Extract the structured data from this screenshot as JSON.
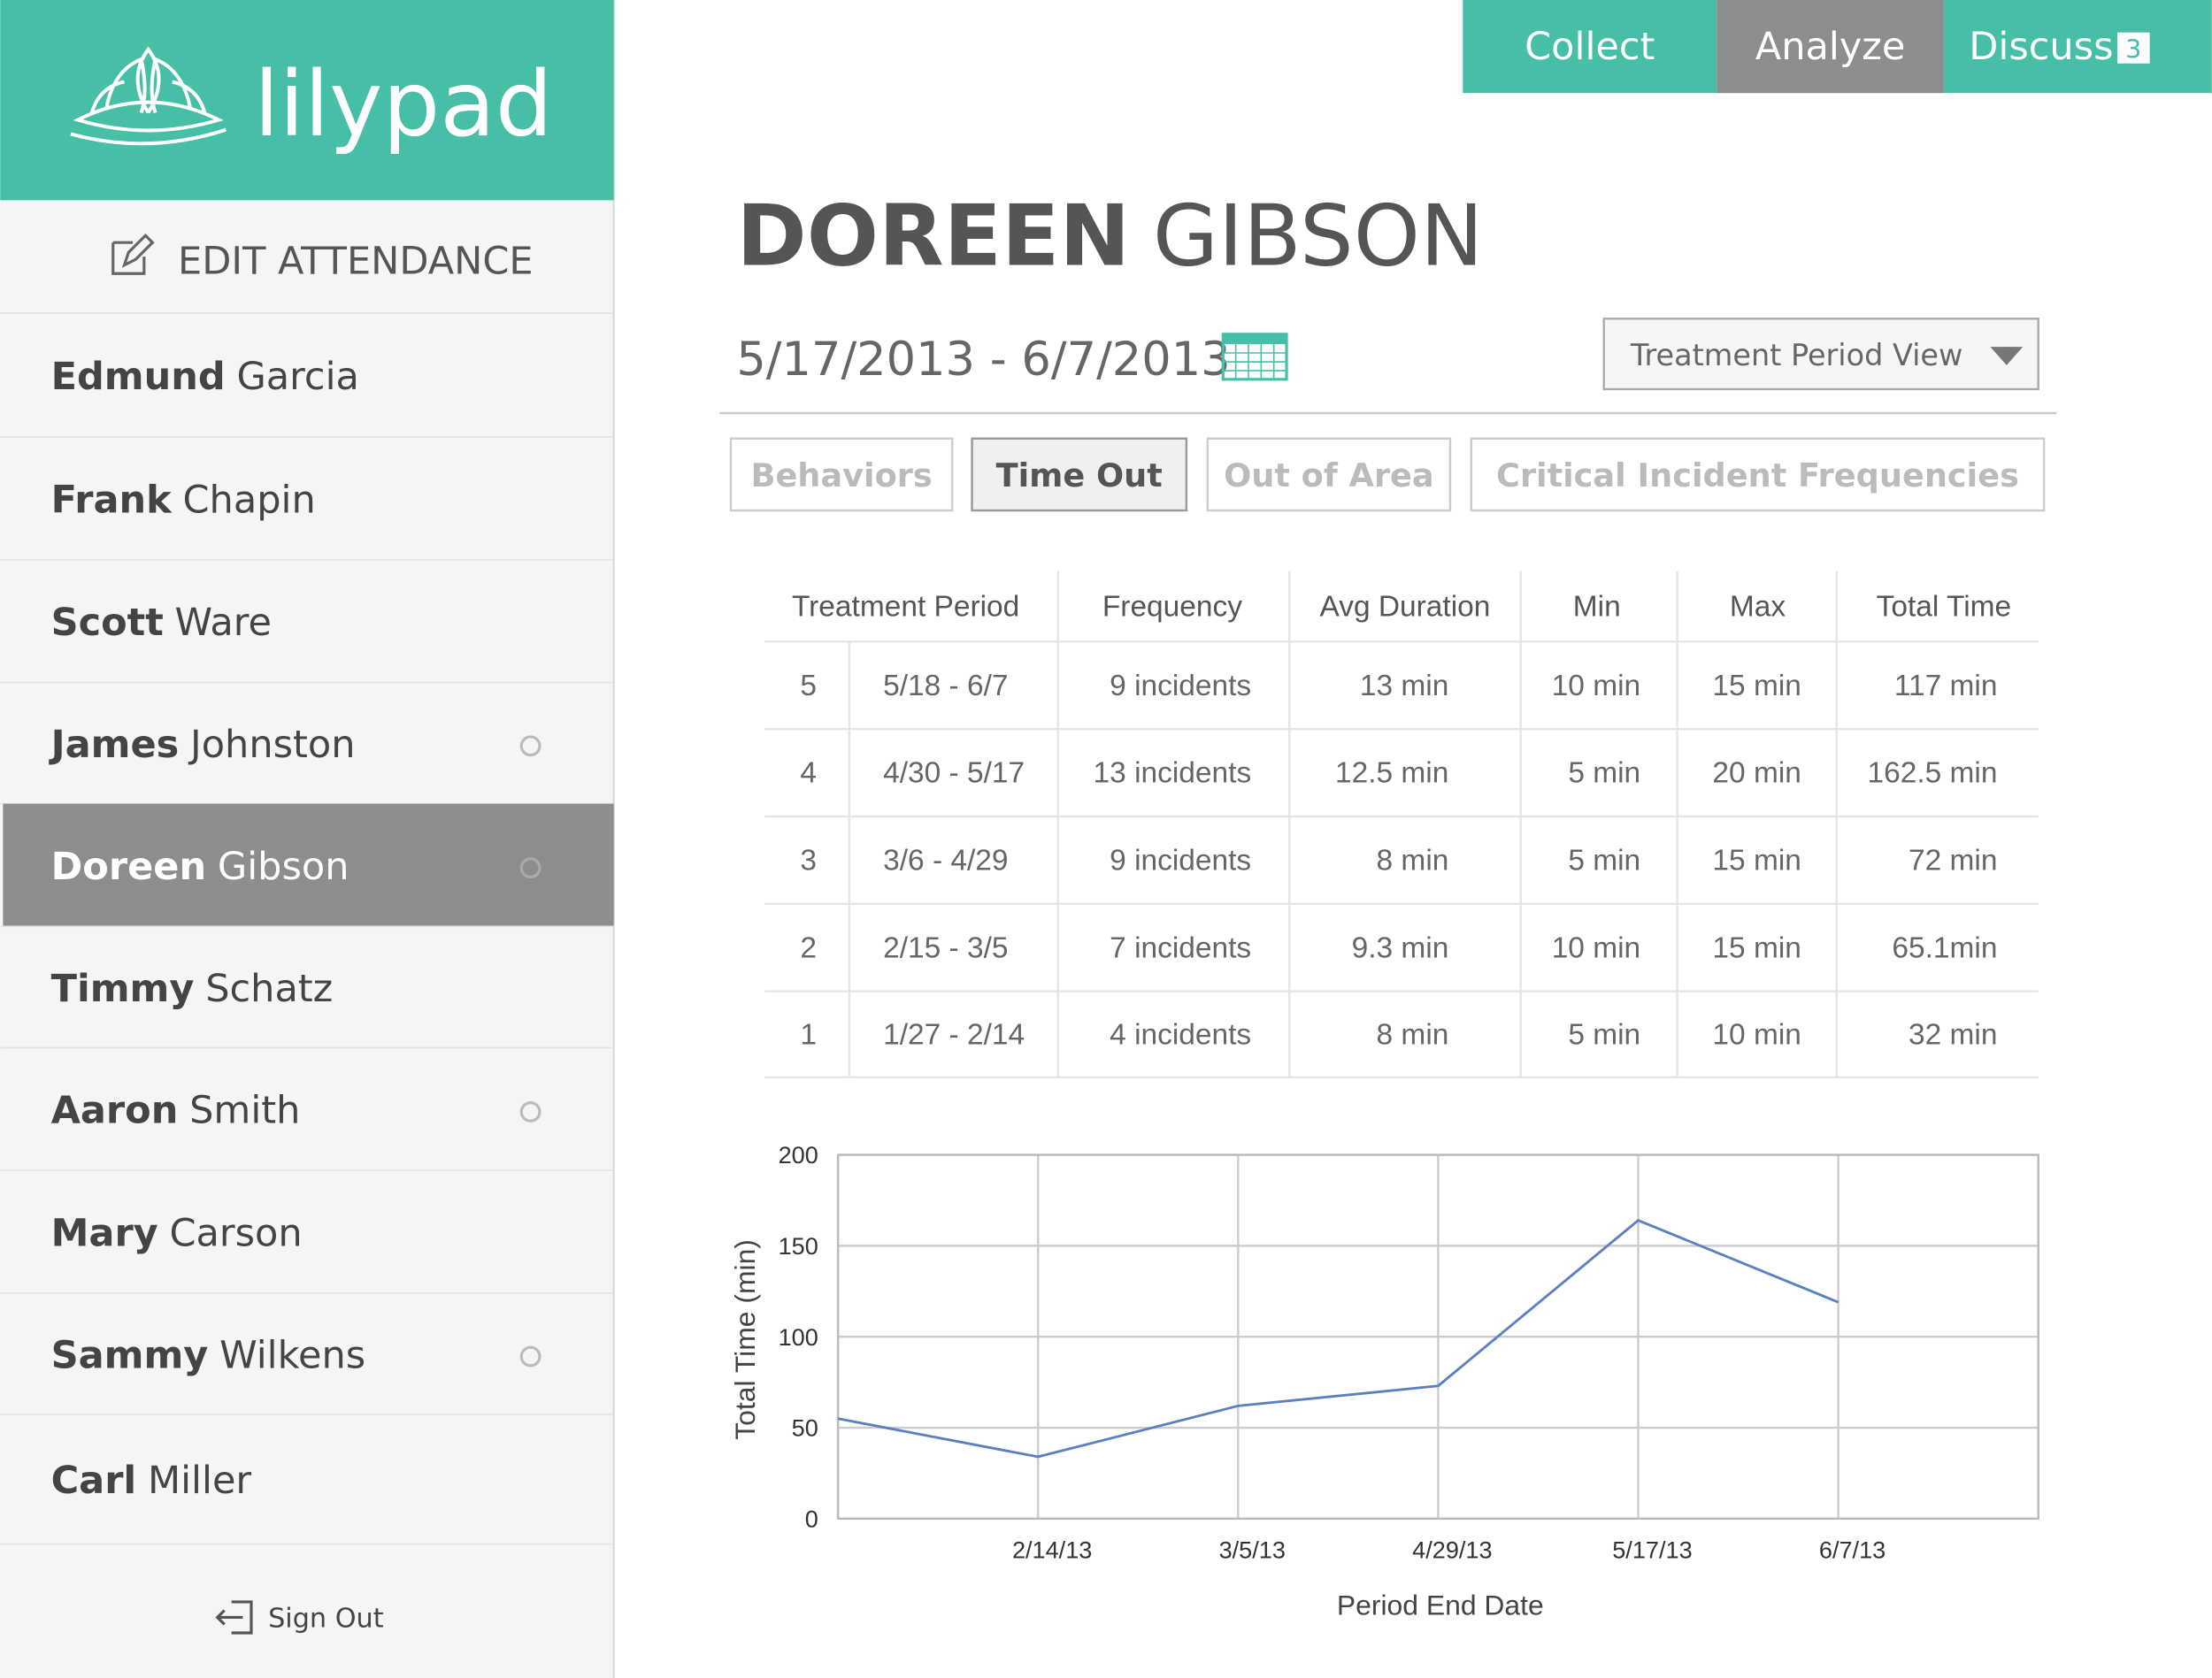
{
  "header": {
    "logo": "lilypad",
    "nav": [
      {
        "label": "Collect"
      },
      {
        "label": "Analyze",
        "active": true
      },
      {
        "label": "Discuss",
        "badge": "3"
      }
    ]
  },
  "sidebar": {
    "edit": "EDIT ATTENDANCE",
    "selected": 4,
    "sign_out": "Sign Out",
    "students": [
      {
        "first": "Edmund",
        "last": "Garcia",
        "dot": false
      },
      {
        "first": "Frank",
        "last": "Chapin",
        "dot": false
      },
      {
        "first": "Scott",
        "last": "Ware",
        "dot": false
      },
      {
        "first": "James",
        "last": "Johnston",
        "dot": true
      },
      {
        "first": "Doreen",
        "last": "Gibson",
        "dot": true
      },
      {
        "first": "Timmy",
        "last": "Schatz",
        "dot": false
      },
      {
        "first": "Aaron",
        "last": "Smith",
        "dot": true
      },
      {
        "first": "Mary",
        "last": "Carson",
        "dot": false
      },
      {
        "first": "Sammy",
        "last": "Wilkens",
        "dot": true
      },
      {
        "first": "Carl",
        "last": "Miller",
        "dot": false
      }
    ]
  },
  "main": {
    "first": "DOREEN",
    "last": "GIBSON",
    "date_range": "5/17/2013 - 6/7/2013",
    "dropdown": "Treatment Period View",
    "tabs": [
      "Behaviors",
      "Time Out",
      "Out of Area",
      "Critical Incident Frequencies"
    ],
    "active_tab": 1
  },
  "table": {
    "headers": [
      "Treatment Period",
      "Frequency",
      "Avg Duration",
      "Min",
      "Max",
      "Total Time"
    ],
    "rows": [
      [
        "5",
        "5/18 - 6/7",
        "9 incidents",
        "13 min",
        "10 min",
        "15 min",
        "117 min"
      ],
      [
        "4",
        "4/30 - 5/17",
        "13 incidents",
        "12.5 min",
        "5 min",
        "20 min",
        "162.5 min"
      ],
      [
        "3",
        "3/6 - 4/29",
        "9 incidents",
        "8 min",
        "5 min",
        "15 min",
        "72 min"
      ],
      [
        "2",
        "2/15 - 3/5",
        "7 incidents",
        "9.3 min",
        "10 min",
        "15 min",
        "65.1min"
      ],
      [
        "1",
        "1/27 - 2/14",
        "4 incidents",
        "8 min",
        "5 min",
        "10 min",
        "32 min"
      ]
    ]
  },
  "chart_data": {
    "type": "line",
    "x_label": "Period End Date",
    "y_label": "Total Time (min)",
    "categories": [
      null,
      "2/14/13",
      "3/5/13",
      "4/29/13",
      "5/17/13",
      "6/7/13",
      null
    ],
    "series": [
      {
        "color": "#5b7fc0",
        "values": [
          55,
          34,
          62,
          73,
          164,
          119,
          null
        ]
      }
    ],
    "ylim": [
      0,
      200
    ],
    "yticks": [
      0,
      50,
      100,
      150,
      200
    ],
    "grid": true
  }
}
